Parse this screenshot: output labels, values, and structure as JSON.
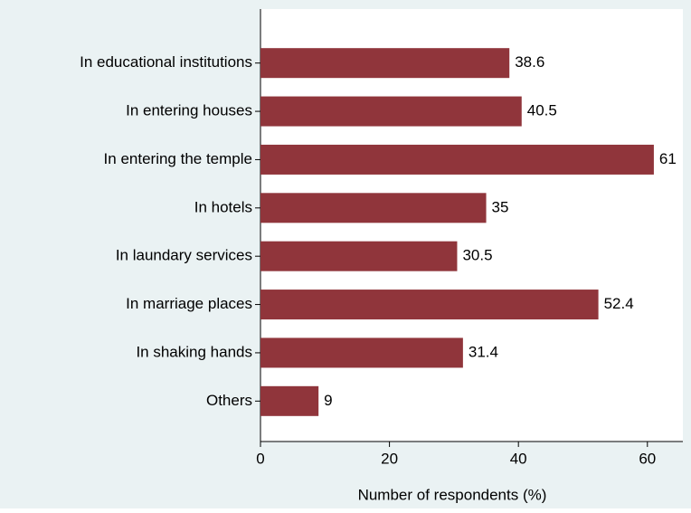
{
  "chart_data": {
    "type": "bar",
    "orientation": "horizontal",
    "x_label": "Number of respondents (%)",
    "categories": [
      "In educational institutions",
      "In entering houses",
      "In entering the temple",
      "In hotels",
      "In laundary services",
      "In marriage places",
      "In shaking hands",
      "Others"
    ],
    "values": [
      38.6,
      40.5,
      61,
      35,
      30.5,
      52.4,
      31.4,
      9
    ],
    "color": "#90353b",
    "xlim": [
      0,
      65.5
    ],
    "xticks": [
      0,
      20,
      40,
      60
    ],
    "grid": false
  }
}
